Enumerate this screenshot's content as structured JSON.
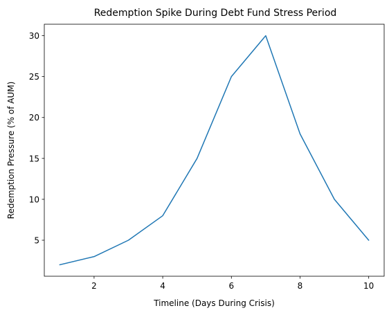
{
  "chart_data": {
    "type": "line",
    "title": "Redemption Spike During Debt Fund Stress Period",
    "xlabel": "Timeline (Days During Crisis)",
    "ylabel": "Redemption Pressure (% of AUM)",
    "x": [
      1,
      2,
      3,
      4,
      5,
      6,
      7,
      8,
      9,
      10
    ],
    "series": [
      {
        "values": [
          2,
          3,
          5,
          8,
          15,
          25,
          30,
          18,
          10,
          5
        ],
        "color": "#1f77b4"
      }
    ],
    "xlim": [
      0.55,
      10.45
    ],
    "ylim": [
      0.6,
      31.4
    ],
    "xticks": [
      2,
      4,
      6,
      8,
      10
    ],
    "yticks": [
      5,
      10,
      15,
      20,
      25,
      30
    ],
    "grid": false,
    "legend": "none"
  }
}
